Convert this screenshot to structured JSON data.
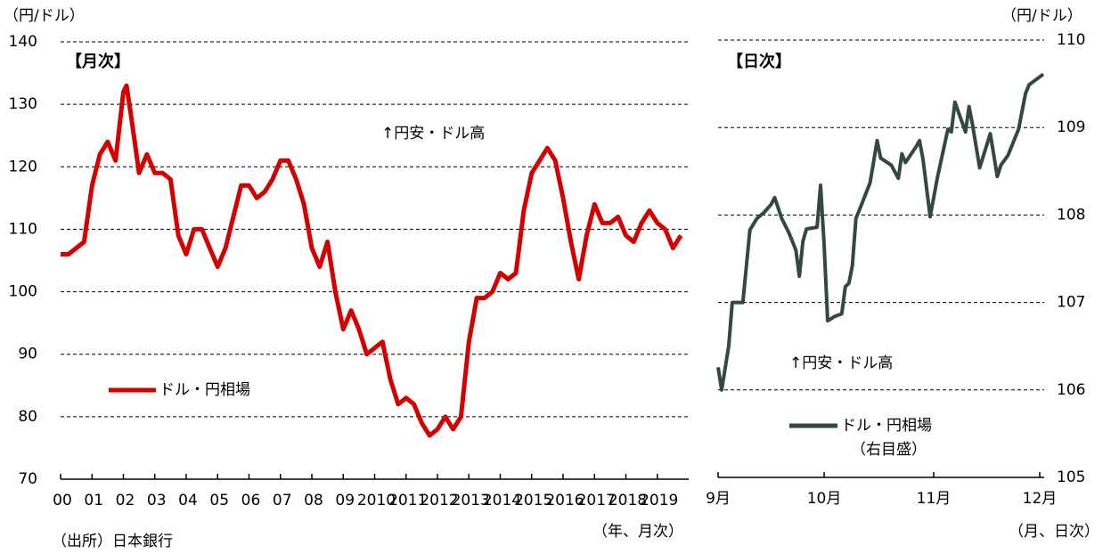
{
  "chart_data": [
    {
      "type": "line",
      "title": "【月次】",
      "y_label": "（円/ドル）",
      "x_label": "（年、月次）",
      "annotation": "↑円安・ドル高",
      "source": "（出所）日本銀行",
      "x": [
        2000,
        2000.25,
        2000.5,
        2000.75,
        2001,
        2001.25,
        2001.5,
        2001.75,
        2002,
        2002.1,
        2002.25,
        2002.5,
        2002.75,
        2003,
        2003.25,
        2003.5,
        2003.75,
        2004,
        2004.25,
        2004.5,
        2004.75,
        2005,
        2005.25,
        2005.5,
        2005.75,
        2006,
        2006.25,
        2006.5,
        2006.75,
        2007,
        2007.25,
        2007.5,
        2007.75,
        2008,
        2008.25,
        2008.5,
        2008.75,
        2009,
        2009.25,
        2009.5,
        2009.75,
        2010,
        2010.25,
        2010.5,
        2010.75,
        2011,
        2011.25,
        2011.5,
        2011.75,
        2012,
        2012.25,
        2012.5,
        2012.75,
        2013,
        2013.25,
        2013.5,
        2013.75,
        2014,
        2014.25,
        2014.5,
        2014.75,
        2015,
        2015.25,
        2015.5,
        2015.75,
        2016,
        2016.25,
        2016.5,
        2016.75,
        2017,
        2017.25,
        2017.5,
        2017.75,
        2018,
        2018.25,
        2018.5,
        2018.75,
        2019,
        2019.25,
        2019.5,
        2019.75
      ],
      "series": [
        {
          "name": "ドル・円相場",
          "color": "#d40000",
          "values": [
            106,
            106,
            107,
            108,
            117,
            122,
            124,
            121,
            132,
            133,
            128,
            119,
            122,
            119,
            119,
            118,
            109,
            106,
            110,
            110,
            107,
            104,
            107,
            112,
            117,
            117,
            115,
            116,
            118,
            121,
            121,
            118,
            114,
            107,
            104,
            108,
            100,
            94,
            97,
            94,
            90,
            91,
            92,
            86,
            82,
            83,
            82,
            79,
            77,
            78,
            80,
            78,
            80,
            92,
            99,
            99,
            100,
            103,
            102,
            103,
            113,
            119,
            121,
            123,
            121,
            115,
            108,
            102,
            109,
            114,
            111,
            111,
            112,
            109,
            108,
            111,
            113,
            111,
            110,
            107,
            109
          ]
        }
      ],
      "xlim": [
        2000,
        2020
      ],
      "ylim": [
        70,
        140
      ],
      "xticks": [
        {
          "value": 2000,
          "label": "00"
        },
        {
          "value": 2001,
          "label": "01"
        },
        {
          "value": 2002,
          "label": "02"
        },
        {
          "value": 2003,
          "label": "03"
        },
        {
          "value": 2004,
          "label": "04"
        },
        {
          "value": 2005,
          "label": "05"
        },
        {
          "value": 2006,
          "label": "06"
        },
        {
          "value": 2007,
          "label": "07"
        },
        {
          "value": 2008,
          "label": "08"
        },
        {
          "value": 2009,
          "label": "09"
        },
        2010,
        2011,
        2012,
        2013,
        2014,
        2015,
        2016,
        2017,
        2018,
        2019
      ],
      "yticks": [
        70,
        80,
        90,
        100,
        110,
        120,
        130,
        140
      ],
      "grid": true
    },
    {
      "type": "line",
      "title": "【日次】",
      "y_label": "（円/ドル）",
      "x_label": "（月、日次）",
      "annotation": "↑円安・ドル高",
      "legend_note": "（右目盛）",
      "x": [
        0,
        1,
        3,
        4,
        7,
        9,
        11,
        13,
        15,
        16,
        18,
        20,
        22,
        23,
        24,
        25,
        28,
        29,
        30,
        31,
        33,
        35,
        36,
        37,
        38,
        39,
        40,
        43,
        45,
        46,
        49,
        51,
        52,
        53,
        56,
        57,
        58,
        60,
        62,
        65,
        66,
        67,
        70,
        71,
        72,
        74,
        77,
        79,
        80,
        82,
        85,
        87,
        88,
        92
      ],
      "series": [
        {
          "name": "ドル・円相場",
          "color": "#34493e",
          "values": [
            106.26,
            106.0,
            106.5,
            107.0,
            107.0,
            107.83,
            107.96,
            108.03,
            108.12,
            108.2,
            107.96,
            107.8,
            107.6,
            107.3,
            107.7,
            107.84,
            107.86,
            108.34,
            107.66,
            106.79,
            106.84,
            106.87,
            107.18,
            107.22,
            107.42,
            107.96,
            108.06,
            108.37,
            108.85,
            108.65,
            108.57,
            108.42,
            108.7,
            108.6,
            108.78,
            108.85,
            108.63,
            107.98,
            108.42,
            108.98,
            108.95,
            109.29,
            108.95,
            109.24,
            109.03,
            108.54,
            108.93,
            108.44,
            108.57,
            108.68,
            108.98,
            109.39,
            109.49,
            109.61
          ]
        }
      ],
      "xlim": [
        0,
        91
      ],
      "ylim": [
        105,
        110
      ],
      "xticks": [
        {
          "value": 0,
          "label": "9月"
        },
        {
          "value": 30,
          "label": "10月"
        },
        {
          "value": 61,
          "label": "11月"
        },
        {
          "value": 91,
          "label": "12月"
        }
      ],
      "yticks": [
        105,
        106,
        107,
        108,
        109,
        110
      ],
      "grid": true
    }
  ]
}
